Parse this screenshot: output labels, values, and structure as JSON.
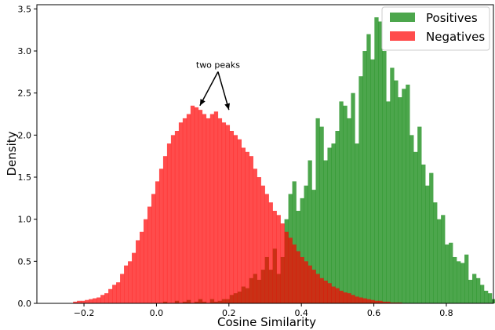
{
  "chart_data": {
    "type": "bar",
    "title": "",
    "xlabel": "Cosine Similarity",
    "ylabel": "Density",
    "xlim": [
      -0.33,
      0.93
    ],
    "ylim": [
      0,
      3.55
    ],
    "xticks": [
      -0.2,
      0.0,
      0.2,
      0.4,
      0.6,
      0.8
    ],
    "xtick_labels": [
      "−0.2",
      "0.0",
      "0.2",
      "0.4",
      "0.6",
      "0.8"
    ],
    "yticks": [
      0.0,
      0.5,
      1.0,
      1.5,
      2.0,
      2.5,
      3.0,
      3.5
    ],
    "ytick_labels": [
      "0.0",
      "0.5",
      "1.0",
      "1.5",
      "2.0",
      "2.5",
      "3.0",
      "3.5"
    ],
    "grid": false,
    "legend_position": "top-right",
    "annotation": {
      "text": "two peaks",
      "x": 0.17,
      "y": 2.8,
      "targets": [
        [
          0.12,
          2.35
        ],
        [
          0.2,
          2.3
        ]
      ]
    },
    "series": [
      {
        "name": "Positives",
        "color": "#008000",
        "alpha": 0.7,
        "bin_start": -0.23,
        "bin_width": 0.0108,
        "values": [
          0,
          0,
          0,
          0,
          0,
          0,
          0,
          0,
          0,
          0,
          0,
          0,
          0,
          0,
          0,
          0,
          0,
          0,
          0,
          0,
          0,
          0,
          0,
          0.02,
          0,
          0,
          0.03,
          0,
          0.02,
          0.04,
          0,
          0.02,
          0.05,
          0.02,
          0,
          0.05,
          0.02,
          0.03,
          0.05,
          0.05,
          0.1,
          0.12,
          0.14,
          0.2,
          0.18,
          0.3,
          0.35,
          0.28,
          0.4,
          0.55,
          0.4,
          0.65,
          0.35,
          0.55,
          1.0,
          1.3,
          1.45,
          1.1,
          1.25,
          1.4,
          1.7,
          1.35,
          2.2,
          2.1,
          1.7,
          1.85,
          1.9,
          2.05,
          2.4,
          2.35,
          2.2,
          2.5,
          1.9,
          2.7,
          3.0,
          3.2,
          2.9,
          3.4,
          3.35,
          3.0,
          2.4,
          2.8,
          2.65,
          2.45,
          2.55,
          2.6,
          2.0,
          1.8,
          2.1,
          1.65,
          1.4,
          1.55,
          1.2,
          1.0,
          1.05,
          0.7,
          0.72,
          0.55,
          0.5,
          0.48,
          0.58,
          0.28,
          0.35,
          0.3,
          0.22,
          0.15,
          0.12,
          0.05,
          0.1,
          0.02,
          0.02
        ]
      },
      {
        "name": "Negatives",
        "color": "#ff0000",
        "alpha": 0.7,
        "bin_start": -0.23,
        "bin_width": 0.0108,
        "values": [
          0.02,
          0.03,
          0.03,
          0.04,
          0.05,
          0.06,
          0.07,
          0.1,
          0.12,
          0.17,
          0.22,
          0.25,
          0.35,
          0.45,
          0.5,
          0.6,
          0.75,
          0.85,
          1.0,
          1.15,
          1.3,
          1.45,
          1.6,
          1.75,
          1.9,
          2.0,
          2.05,
          2.15,
          2.2,
          2.25,
          2.35,
          2.33,
          2.3,
          2.25,
          2.2,
          2.25,
          2.28,
          2.2,
          2.15,
          2.12,
          2.05,
          2.0,
          1.95,
          1.85,
          1.8,
          1.75,
          1.6,
          1.5,
          1.4,
          1.3,
          1.2,
          1.1,
          1.05,
          0.95,
          0.85,
          0.78,
          0.7,
          0.62,
          0.55,
          0.5,
          0.45,
          0.4,
          0.35,
          0.3,
          0.27,
          0.24,
          0.2,
          0.18,
          0.15,
          0.13,
          0.12,
          0.1,
          0.08,
          0.07,
          0.06,
          0.05,
          0.04,
          0.03,
          0.03,
          0.02,
          0.02,
          0.01,
          0.01,
          0.01,
          0,
          0,
          0,
          0,
          0,
          0,
          0,
          0,
          0,
          0,
          0,
          0,
          0,
          0,
          0,
          0,
          0,
          0,
          0,
          0,
          0,
          0,
          0,
          0,
          0,
          0
        ]
      }
    ]
  }
}
